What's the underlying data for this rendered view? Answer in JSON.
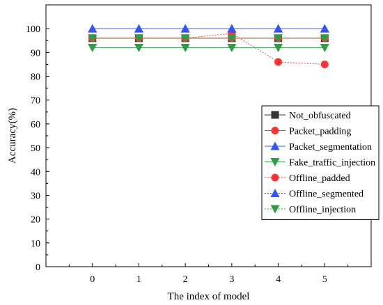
{
  "chart_data": {
    "type": "line",
    "title": "",
    "xlabel": "The index of model",
    "ylabel": "Accuracy(%)",
    "x": [
      0,
      1,
      2,
      3,
      4,
      5
    ],
    "xlim": [
      -1,
      6
    ],
    "ylim": [
      0,
      110
    ],
    "x_ticks": [
      "0",
      "1",
      "2",
      "3",
      "4",
      "5"
    ],
    "y_ticks": [
      "0",
      "10",
      "20",
      "30",
      "40",
      "50",
      "60",
      "70",
      "80",
      "90",
      "100"
    ],
    "grid": false,
    "legend_position": "right",
    "series": [
      {
        "name": "Not_obfuscated",
        "values": [
          96,
          96,
          96,
          96,
          96,
          96
        ],
        "color": "#333333",
        "marker": "square",
        "line": "solid"
      },
      {
        "name": "Packet_padding",
        "values": [
          96,
          96,
          96,
          96,
          96,
          96
        ],
        "color": "#ff3333",
        "marker": "circle",
        "line": "solid"
      },
      {
        "name": "Packet_segmentation",
        "values": [
          100,
          100,
          100,
          100,
          100,
          100
        ],
        "color": "#3355ff",
        "marker": "triangle-up",
        "line": "solid"
      },
      {
        "name": "Fake_traffic_injection",
        "values": [
          92,
          92,
          92,
          92,
          92,
          92
        ],
        "color": "#2e9e44",
        "marker": "triangle-down",
        "line": "solid"
      },
      {
        "name": "Offline_padded",
        "values": [
          96,
          96,
          96,
          98,
          86,
          85
        ],
        "color": "#ff3333",
        "marker": "circle",
        "line": "dotted"
      },
      {
        "name": "Offline_segmented",
        "values": [
          100,
          100,
          100,
          100,
          100,
          100
        ],
        "color": "#3355ff",
        "marker": "triangle-up",
        "line": "dotted"
      },
      {
        "name": "Offline_injection",
        "values": [
          96,
          96,
          96,
          96,
          96,
          96
        ],
        "color": "#2e9e44",
        "marker": "triangle-down",
        "line": "dotted"
      }
    ]
  }
}
